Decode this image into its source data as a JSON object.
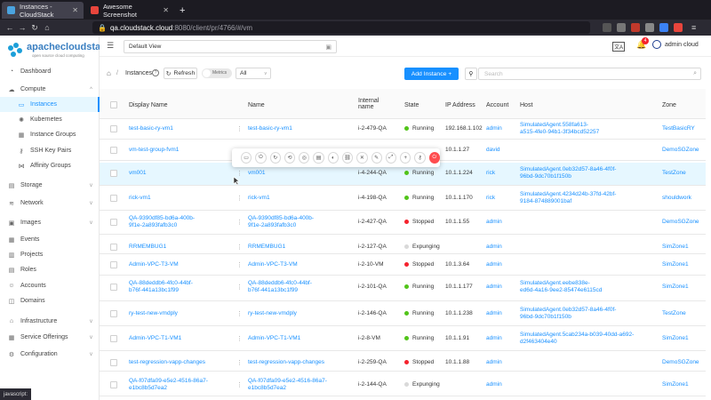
{
  "browser": {
    "tabs": [
      {
        "title": "Instances - CloudStack",
        "active": true
      },
      {
        "title": "Awesome Screenshot",
        "active": false
      }
    ],
    "new_tab": "+",
    "url_host": "qa.cloudstack.cloud",
    "url_path": ":8080/client/pr/4766/#/vm"
  },
  "logo": {
    "name": "apachecloudstack",
    "tagline": "open source cloud computing"
  },
  "sidebar": {
    "items": [
      {
        "label": "Dashboard",
        "icon": "dashboard-icon"
      },
      {
        "label": "Compute",
        "icon": "cloud-icon",
        "caret": "^"
      },
      {
        "label": "Instances",
        "icon": "desktop-icon",
        "active": true
      },
      {
        "label": "Kubernetes",
        "icon": "kubernetes-icon"
      },
      {
        "label": "Instance Groups",
        "icon": "group-icon"
      },
      {
        "label": "SSH Key Pairs",
        "icon": "key-icon"
      },
      {
        "label": "Affinity Groups",
        "icon": "share-icon"
      },
      {
        "label": "Storage",
        "icon": "database-icon",
        "caret": "v"
      },
      {
        "label": "Network",
        "icon": "wifi-icon",
        "caret": "v"
      },
      {
        "label": "Images",
        "icon": "picture-icon",
        "caret": "v"
      },
      {
        "label": "Events",
        "icon": "schedule-icon"
      },
      {
        "label": "Projects",
        "icon": "project-icon"
      },
      {
        "label": "Roles",
        "icon": "idcard-icon"
      },
      {
        "label": "Accounts",
        "icon": "team-icon"
      },
      {
        "label": "Domains",
        "icon": "block-icon"
      },
      {
        "label": "Infrastructure",
        "icon": "bank-icon",
        "caret": "v"
      },
      {
        "label": "Service Offerings",
        "icon": "shopping-icon",
        "caret": "v"
      },
      {
        "label": "Configuration",
        "icon": "setting-icon",
        "caret": "v"
      }
    ]
  },
  "header": {
    "project": "Default View",
    "user": "admin cloud",
    "notifications": "4"
  },
  "toolbar": {
    "breadcrumb": "Instances",
    "refresh": "Refresh",
    "metrics": "Metrics",
    "filter": "All",
    "add": "Add Instance +",
    "search_placeholder": "Search"
  },
  "columns": [
    "Display Name",
    "Name",
    "Internal name",
    "State",
    "IP Address",
    "Account",
    "Host",
    "Zone"
  ],
  "rows": [
    {
      "display": "test-basic-ry-vm1",
      "name": "test-basic-ry-vm1",
      "internal": "i-2-479-QA",
      "state": "Running",
      "ip": "192.168.1.102",
      "account": "admin",
      "host": [
        "SimulatedAgent.558fa613-",
        "a515-4fe0-94b1-3f34bcd52257"
      ],
      "zone": "TestBasicRY"
    },
    {
      "display": "vm-test-group-fvm1",
      "name": "",
      "internal": "",
      "state": "",
      "ip": "10.1.1.27",
      "account": "david",
      "host": [],
      "zone": "DemoSGZone"
    },
    {
      "display": "vm001",
      "name": "vm001",
      "internal": "i-4-244-QA",
      "state": "Running",
      "ip": "10.1.1.224",
      "account": "rick",
      "host": [
        "SimulatedAgent.0eb32d57-8a46-4f0f-",
        "96bd-9dc70b1f150b"
      ],
      "zone": "TestZone"
    },
    {
      "display": "rick-vm1",
      "name": "rick-vm1",
      "internal": "i-4-198-QA",
      "state": "Running",
      "ip": "10.1.1.170",
      "account": "rick",
      "host": [
        "SimulatedAgent.4234d24b-37fd-42bf-",
        "9184-874889001baf"
      ],
      "zone": "shouldwork"
    },
    {
      "display": [
        "QA-9390df85-bd6a-400b-",
        "9f1e-2a893fafb3c0"
      ],
      "name": [
        "QA-9390df85-bd6a-400b-",
        "9f1e-2a893fafb3c0"
      ],
      "internal": "i-2-427-QA",
      "state": "Stopped",
      "ip": "10.1.1.55",
      "account": "admin",
      "host": [],
      "zone": "DemoSGZone"
    },
    {
      "display": "RRMEMBUG1",
      "name": "RRMEMBUG1",
      "internal": "i-2-127-QA",
      "state": "Expunging",
      "ip": "",
      "account": "admin",
      "host": [],
      "zone": "SimZone1"
    },
    {
      "display": "Admin-VPC-T3-VM",
      "name": "Admin-VPC-T3-VM",
      "internal": "i-2-10-VM",
      "state": "Stopped",
      "ip": "10.1.3.64",
      "account": "admin",
      "host": [],
      "zone": "SimZone1"
    },
    {
      "display": [
        "QA-88deddb6-4fc0-44bf-",
        "b76f-441a13bc1f99"
      ],
      "name": [
        "QA-88deddb6-4fc0-44bf-",
        "b76f-441a13bc1f99"
      ],
      "internal": "i-2-101-QA",
      "state": "Running",
      "ip": "10.1.1.177",
      "account": "admin",
      "host": [
        "SimulatedAgent.eebe838e-",
        "ed6d-4a16-9ee2-85474e6115cd"
      ],
      "zone": "SimZone1"
    },
    {
      "display": "ry-test-new-vmdply",
      "name": "ry-test-new-vmdply",
      "internal": "i-2-146-QA",
      "state": "Running",
      "ip": "10.1.1.238",
      "account": "admin",
      "host": [
        "SimulatedAgent.0eb32d57-8a46-4f0f-",
        "96bd-9dc70b1f150b"
      ],
      "zone": "TestZone"
    },
    {
      "display": "Admin-VPC-T1-VM1",
      "name": "Admin-VPC-T1-VM1",
      "internal": "i-2-8-VM",
      "state": "Running",
      "ip": "10.1.1.91",
      "account": "admin",
      "host": [
        "SimulatedAgent.5cab234a-b039-40dd-a692-",
        "d2f463404e40"
      ],
      "zone": "SimZone1"
    },
    {
      "display": "test-regression-vapp-changes",
      "name": "test-regression-vapp-changes",
      "internal": "i-2-259-QA",
      "state": "Stopped",
      "ip": "10.1.1.88",
      "account": "admin",
      "host": [],
      "zone": "DemoSGZone"
    },
    {
      "display": [
        "QA-f07dfa09-e5e2-4516-86a7-",
        "e1bc8b5d7ea2"
      ],
      "name": [
        "QA-f07dfa09-e5e2-4516-86a7-",
        "e1bc8b5d7ea2"
      ],
      "internal": "i-2-144-QA",
      "state": "Expunging",
      "ip": "",
      "account": "admin",
      "host": [],
      "zone": "SimZone1"
    }
  ],
  "state_colors": {
    "Running": "#52c41a",
    "Stopped": "#f5222d",
    "Expunging": "#d9d9d9"
  },
  "status_text": "javascript:"
}
